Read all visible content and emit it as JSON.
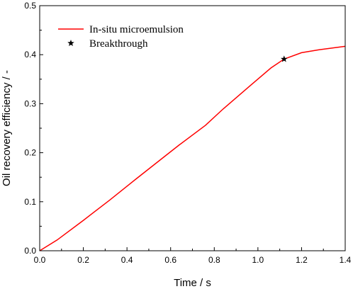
{
  "chart_data": {
    "type": "line",
    "xlabel": "Time / s",
    "ylabel": "Oil recovery efficiency / -",
    "xlim": [
      0.0,
      1.4
    ],
    "ylim": [
      0.0,
      0.5
    ],
    "x_ticks": [
      "0.0",
      "0.2",
      "0.4",
      "0.6",
      "0.8",
      "1.0",
      "1.2",
      "1.4"
    ],
    "y_ticks": [
      "0.0",
      "0.1",
      "0.2",
      "0.3",
      "0.4",
      "0.5"
    ],
    "grid": false,
    "legend_position": "top-left",
    "series": [
      {
        "name": "In-situ microemulsion",
        "color": "#ff0000",
        "x": [
          0.0,
          0.08,
          0.2,
          0.32,
          0.44,
          0.56,
          0.64,
          0.76,
          0.84,
          0.96,
          1.06,
          1.12,
          1.2,
          1.28,
          1.4
        ],
        "y": [
          0.0,
          0.022,
          0.062,
          0.103,
          0.146,
          0.188,
          0.216,
          0.256,
          0.289,
          0.335,
          0.373,
          0.391,
          0.404,
          0.41,
          0.417
        ]
      }
    ],
    "markers": [
      {
        "name": "Breakthrough",
        "symbol": "star",
        "color": "#000000",
        "x": 1.12,
        "y": 0.391
      }
    ]
  }
}
